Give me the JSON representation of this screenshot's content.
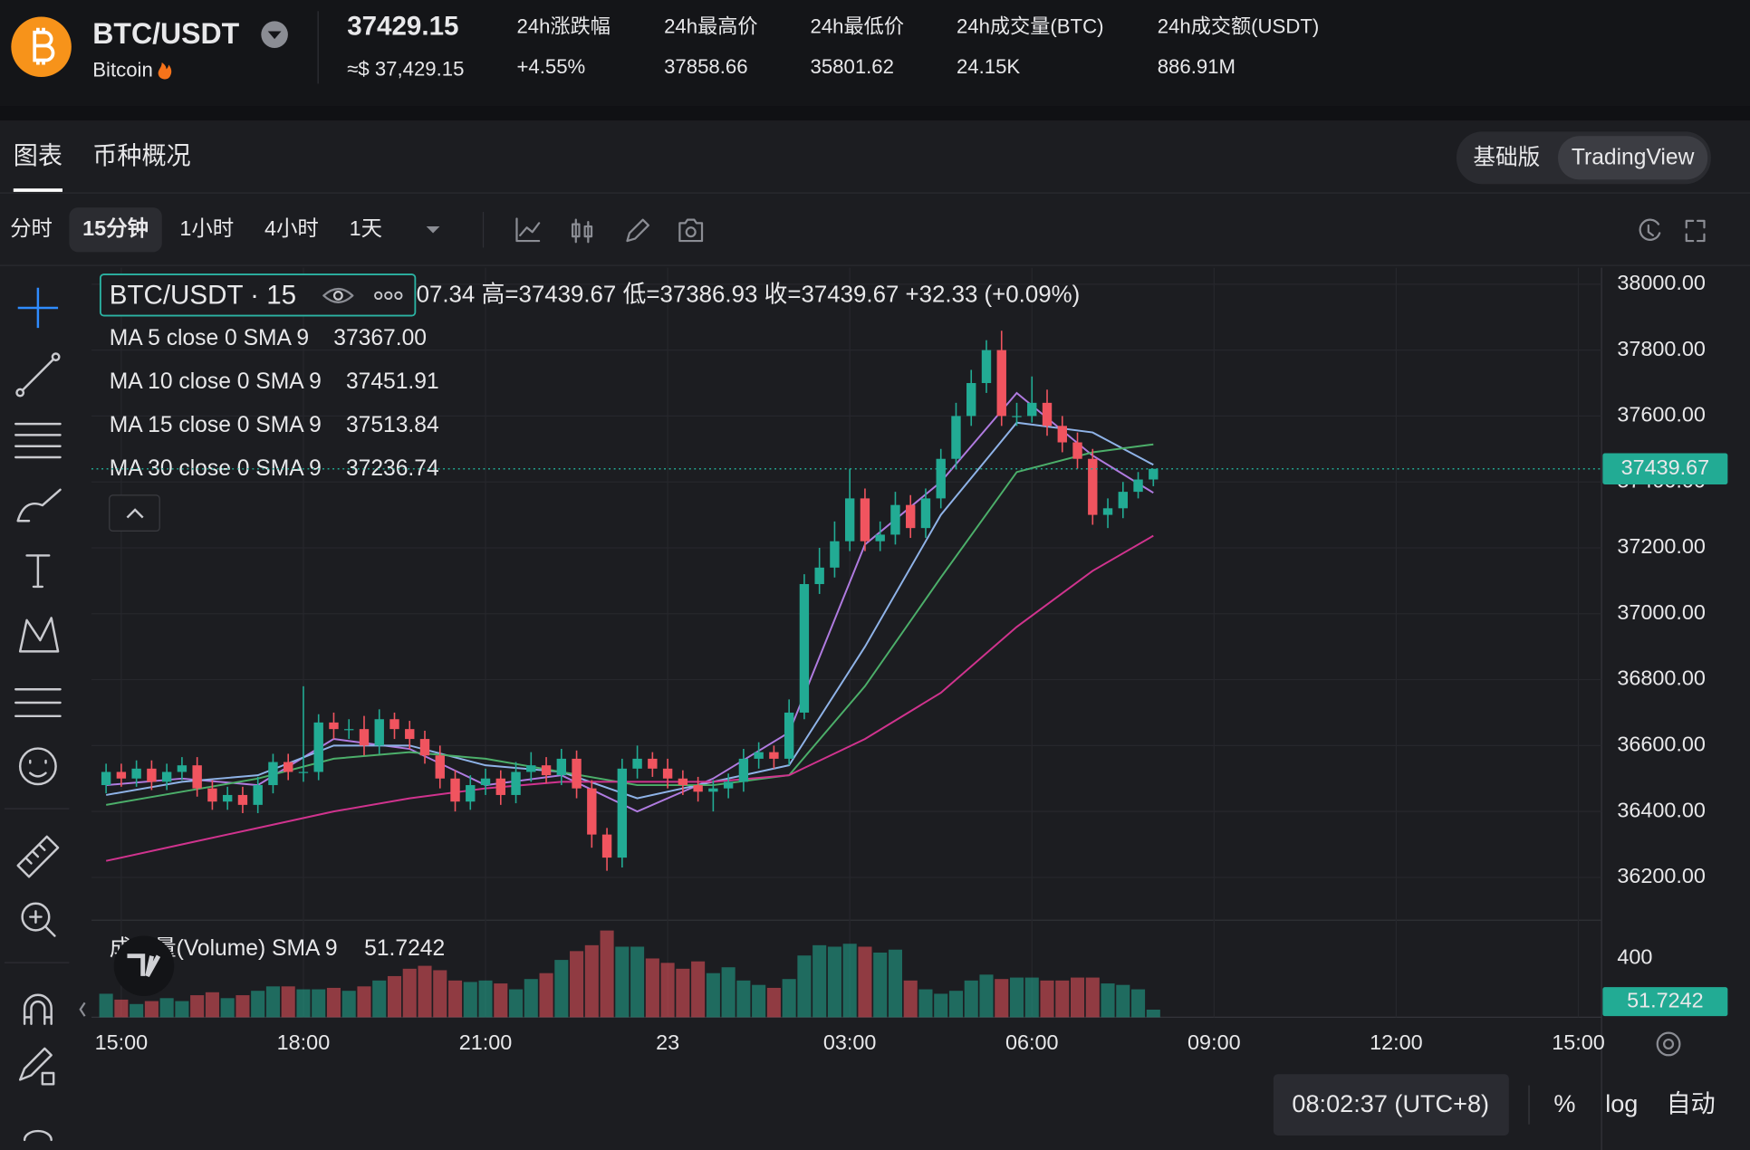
{
  "header": {
    "symbol": "BTC/USDT",
    "name": "Bitcoin",
    "price": "37429.15",
    "price_usd": "≈$ 37,429.15",
    "stats": [
      {
        "label": "24h涨跌幅",
        "value": "+4.55%",
        "color": "#2ebd85"
      },
      {
        "label": "24h最高价",
        "value": "37858.66"
      },
      {
        "label": "24h最低价",
        "value": "35801.62"
      },
      {
        "label": "24h成交量(BTC)",
        "value": "24.15K"
      },
      {
        "label": "24h成交额(USDT)",
        "value": "886.91M"
      }
    ]
  },
  "tabs": [
    "图表",
    "币种概况"
  ],
  "active_tab": 0,
  "view_modes": [
    "基础版",
    "TradingView"
  ],
  "active_view": 1,
  "intervals": [
    "分时",
    "15分钟",
    "1小时",
    "4小时",
    "1天"
  ],
  "active_interval": 1,
  "chart_data": {
    "type": "candlestick",
    "symbol_label": "BTC/USDT · 15",
    "ohlc_text": "07.34 高=37439.67 低=37386.93 收=37439.67 +32.33 (+0.09%)",
    "open": [
      36480,
      36520,
      36500,
      36530,
      36490,
      36520,
      36540,
      36470,
      36430,
      36450,
      36420,
      36480,
      36550,
      36520,
      36520,
      36670,
      36650,
      36650,
      36600,
      36680,
      36650,
      36620,
      36570,
      36500,
      36430,
      36480,
      36500,
      36450,
      36520,
      36540,
      36510,
      36560,
      36470,
      36330,
      36260,
      36530,
      36560,
      36530,
      36500,
      36480,
      36460,
      36470,
      36490,
      36560,
      36580,
      36560,
      36700,
      37090,
      37140,
      37220,
      37350,
      37220,
      37240,
      37330,
      37260,
      37350,
      37470,
      37600,
      37700,
      37800,
      37600,
      37600,
      37640,
      37570,
      37520,
      37470,
      37300,
      37320,
      37370,
      37407.34
    ],
    "high": [
      36545,
      36545,
      36555,
      36555,
      36545,
      36565,
      36565,
      36495,
      36475,
      36475,
      36505,
      36575,
      36575,
      36780,
      36695,
      36700,
      36680,
      36690,
      36710,
      36700,
      36675,
      36645,
      36600,
      36525,
      36510,
      36530,
      36525,
      36550,
      36580,
      36565,
      36590,
      36585,
      36495,
      36350,
      36560,
      36600,
      36580,
      36560,
      36525,
      36505,
      36495,
      36515,
      36590,
      36610,
      36600,
      36740,
      37120,
      37200,
      37280,
      37440,
      37380,
      37280,
      37370,
      37360,
      37380,
      37500,
      37640,
      37740,
      37830,
      37858.66,
      37640,
      37720,
      37680,
      37600,
      37550,
      37500,
      37350,
      37400,
      37430,
      37439.67
    ],
    "low": [
      36455,
      36475,
      36475,
      36465,
      36465,
      36495,
      36445,
      36405,
      36405,
      36395,
      36395,
      36455,
      36495,
      36490,
      36495,
      36620,
      36620,
      36570,
      36575,
      36620,
      36590,
      36545,
      36470,
      36400,
      36405,
      36450,
      36420,
      36425,
      36490,
      36485,
      36480,
      36440,
      36290,
      36220,
      36230,
      36500,
      36505,
      36470,
      36450,
      36430,
      36400,
      36440,
      36460,
      36530,
      36530,
      36540,
      36680,
      37060,
      37110,
      37190,
      37190,
      37190,
      37210,
      37230,
      37230,
      37320,
      37440,
      37570,
      37670,
      37570,
      37570,
      37580,
      37540,
      37490,
      37440,
      37270,
      37260,
      37290,
      37350,
      37386.93
    ],
    "close": [
      36520,
      36500,
      36530,
      36490,
      36520,
      36540,
      36470,
      36430,
      36450,
      36420,
      36480,
      36550,
      36520,
      36520,
      36670,
      36650,
      36650,
      36600,
      36680,
      36650,
      36620,
      36570,
      36500,
      36430,
      36480,
      36500,
      36450,
      36520,
      36540,
      36510,
      36560,
      36470,
      36330,
      36260,
      36530,
      36560,
      36530,
      36500,
      36480,
      36460,
      36470,
      36490,
      36560,
      36580,
      36560,
      36700,
      37090,
      37140,
      37220,
      37350,
      37220,
      37240,
      37330,
      37260,
      37350,
      37470,
      37600,
      37700,
      37800,
      37600,
      37600,
      37640,
      37570,
      37520,
      37470,
      37300,
      37320,
      37370,
      37407.34,
      37439.67
    ],
    "up_color": "#22ab94",
    "down_color": "#f0545f",
    "xlim": [
      -0.96,
      98.53
    ],
    "xticks": [
      {
        "value": 1,
        "label": "15:00"
      },
      {
        "value": 13,
        "label": "18:00"
      },
      {
        "value": 25,
        "label": "21:00"
      },
      {
        "value": 37,
        "label": "23"
      },
      {
        "value": 49,
        "label": "03:00"
      },
      {
        "value": 61,
        "label": "06:00"
      },
      {
        "value": 73,
        "label": "09:00"
      },
      {
        "value": 85,
        "label": "12:00"
      },
      {
        "value": 97,
        "label": "15:00"
      }
    ],
    "ylim": [
      36070,
      38050
    ],
    "yticks": [
      {
        "value": 36200,
        "label": "36200.00"
      },
      {
        "value": 36400,
        "label": "36400.00"
      },
      {
        "value": 36600,
        "label": "36600.00"
      },
      {
        "value": 36800,
        "label": "36800.00"
      },
      {
        "value": 37000,
        "label": "37000.00"
      },
      {
        "value": 37200,
        "label": "37200.00"
      },
      {
        "value": 37400,
        "label": "37400.00"
      },
      {
        "value": 37600,
        "label": "37600.00"
      },
      {
        "value": 37800,
        "label": "37800.00"
      },
      {
        "value": 38000,
        "label": "38000.00"
      }
    ],
    "grid": true,
    "ma": {
      "x": [
        0,
        5,
        10,
        15,
        20,
        25,
        30,
        35,
        40,
        45,
        50,
        55,
        60,
        65,
        69
      ],
      "series": [
        {
          "name": "MA 5 close 0 SMA 9",
          "color": "#b07be0",
          "values": [
            36480,
            36500,
            36480,
            36620,
            36590,
            36480,
            36510,
            36400,
            36500,
            36640,
            37210,
            37400,
            37670,
            37480,
            37367
          ],
          "value_label": "37367.00"
        },
        {
          "name": "MA 10 close 0 SMA 9",
          "color": "#8fb3e8",
          "values": [
            36450,
            36490,
            36510,
            36600,
            36600,
            36540,
            36520,
            36440,
            36490,
            36540,
            36900,
            37300,
            37580,
            37550,
            37451.91
          ]
        },
        {
          "name": "MA 15 close 0 SMA 9",
          "color": "#4caf6a",
          "values": [
            36420,
            36460,
            36500,
            36560,
            36580,
            36560,
            36520,
            36480,
            36480,
            36510,
            36780,
            37110,
            37430,
            37490,
            37513.84
          ]
        },
        {
          "name": "MA 30 close 0 SMA 9",
          "color": "#d0338e",
          "values": [
            36250,
            36300,
            36350,
            36400,
            36440,
            36470,
            36490,
            36490,
            36490,
            36510,
            36620,
            36760,
            36960,
            37130,
            37236.74
          ]
        }
      ]
    },
    "volume": {
      "name": "成交量(Volume) SMA 9",
      "values": [
        160,
        120,
        90,
        110,
        130,
        110,
        150,
        170,
        130,
        150,
        180,
        210,
        210,
        190,
        190,
        200,
        180,
        210,
        250,
        280,
        330,
        350,
        320,
        250,
        240,
        250,
        230,
        190,
        260,
        300,
        390,
        450,
        490,
        590,
        480,
        480,
        400,
        370,
        330,
        380,
        300,
        340,
        250,
        220,
        200,
        260,
        420,
        490,
        480,
        500,
        480,
        440,
        460,
        250,
        190,
        160,
        180,
        250,
        290,
        260,
        270,
        270,
        250,
        250,
        270,
        270,
        230,
        220,
        190,
        51.7242
      ],
      "ylim": [
        0,
        660
      ],
      "yticks": [
        400
      ]
    }
  },
  "footer": {
    "time": "08:02:37 (UTC+8)",
    "options": [
      "%",
      "log",
      "自动"
    ]
  }
}
